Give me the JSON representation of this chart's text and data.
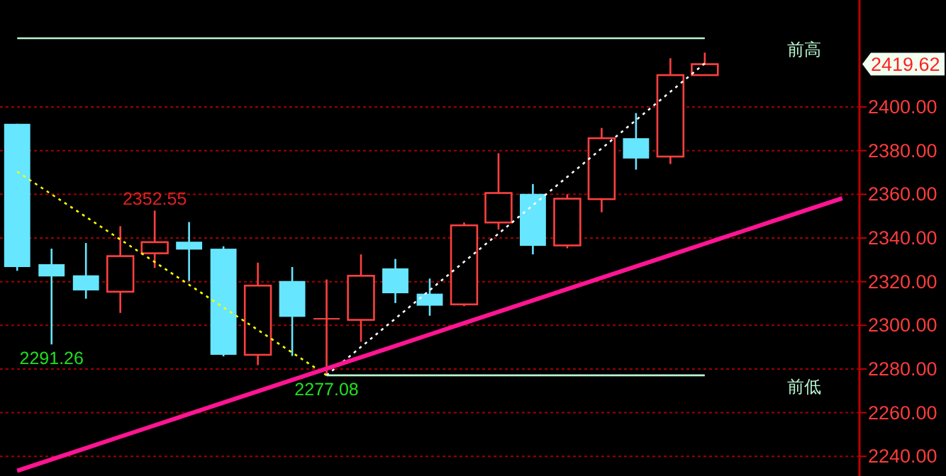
{
  "chart_data": {
    "type": "candlestick",
    "categories": [
      null,
      null,
      null,
      null,
      null,
      null,
      null,
      null,
      null,
      null,
      null,
      null,
      null,
      null,
      null,
      null,
      null,
      null,
      null,
      null,
      null,
      null,
      null,
      null,
      null
    ],
    "ohlc": [
      [
        2392.3,
        2392.3,
        2325.0,
        2326.7
      ],
      [
        2328.0,
        2335.1,
        2291.26,
        2322.4
      ],
      [
        2322.9,
        2337.7,
        2312.2,
        2316.0
      ],
      [
        2315.4,
        2345.4,
        2305.7,
        2331.7
      ],
      [
        2333.0,
        2352.55,
        2326.3,
        2338.1
      ],
      [
        2338.3,
        2347.3,
        2320.3,
        2334.7
      ],
      [
        2335.1,
        2336.2,
        2285.8,
        2286.5
      ],
      [
        2286.5,
        2328.7,
        2281.8,
        2318.2
      ],
      [
        2320.3,
        2326.7,
        2286.0,
        2303.9
      ],
      [
        2303.0,
        2321.0,
        2277.08,
        2303.0
      ],
      [
        2302.5,
        2332.5,
        2292.5,
        2322.7
      ],
      [
        2326.1,
        2330.4,
        2310.2,
        2314.7
      ],
      [
        2314.5,
        2321.4,
        2304.4,
        2309.0
      ],
      [
        2309.6,
        2347.1,
        2308.8,
        2345.8
      ],
      [
        2347.1,
        2378.8,
        2343.9,
        2360.6
      ],
      [
        2360.2,
        2364.7,
        2332.5,
        2336.4
      ],
      [
        2336.6,
        2360.0,
        2335.3,
        2358.0
      ],
      [
        2357.8,
        2390.4,
        2351.8,
        2385.7
      ],
      [
        2385.7,
        2397.2,
        2371.3,
        2376.4
      ],
      [
        2377.3,
        2422.3,
        2373.9,
        2414.6
      ],
      [
        2414.6,
        2424.9,
        2414.6,
        2419.62
      ],
      null,
      null,
      null,
      null
    ],
    "colors": [
      "#66e6ff",
      "#66e6ff",
      "#66e6ff",
      "#ff4040",
      "#ff4040",
      "#66e6ff",
      "#66e6ff",
      "#ff4040",
      "#66e6ff",
      "#ff4040",
      "#ff4040",
      "#66e6ff",
      "#66e6ff",
      "#ff4040",
      "#ff4040",
      "#66e6ff",
      "#ff4040",
      "#ff4040",
      "#66e6ff",
      "#ff4040",
      "#ff4040",
      null,
      null,
      null,
      null
    ],
    "series": [
      {
        "type": "line",
        "values": [
          2370.4,
          2360.0,
          2349.7,
          2339.3,
          2329.0,
          2318.6,
          2308.2,
          2297.9,
          2287.5,
          2277.1,
          null,
          null,
          null,
          null,
          null,
          null,
          null,
          null,
          null,
          null,
          null,
          null,
          null,
          null,
          null
        ],
        "color": "#ffff00",
        "line_style": "dotted"
      },
      {
        "type": "line",
        "values": [
          null,
          null,
          null,
          null,
          null,
          null,
          null,
          null,
          null,
          2277.1,
          2290.1,
          2303.1,
          2316.1,
          2329.1,
          2342.0,
          2355.0,
          2368.0,
          2381.0,
          2394.0,
          2407.0,
          2420.0,
          null,
          null,
          null,
          null
        ],
        "color": "#ffffff",
        "line_style": "dotted"
      },
      {
        "type": "line",
        "values": [
          2233.4,
          2238.6,
          2243.8,
          2249.0,
          2254.2,
          2259.4,
          2264.6,
          2269.8,
          2275.0,
          2280.2,
          2285.4,
          2290.6,
          2295.8,
          2301.0,
          2306.2,
          2311.4,
          2316.6,
          2321.8,
          2327.0,
          2332.2,
          2337.4,
          2342.6,
          2347.8,
          2353.0,
          2358.2
        ],
        "color": "#ff1493",
        "line_style": "solid"
      },
      {
        "type": "line",
        "name": "前高",
        "values": [
          2431.5,
          2431.5,
          2431.5,
          2431.5,
          2431.5,
          2431.5,
          2431.5,
          2431.5,
          2431.5,
          2431.5,
          2431.5,
          2431.5,
          2431.5,
          2431.5,
          2431.5,
          2431.5,
          2431.5,
          2431.5,
          2431.5,
          2431.5,
          2431.5,
          null,
          null,
          null,
          null
        ],
        "color": "#b8f5d0",
        "line_style": "solid"
      },
      {
        "type": "line",
        "name": "前低",
        "values": [
          null,
          null,
          null,
          null,
          null,
          null,
          null,
          null,
          null,
          2277.1,
          2277.1,
          2277.1,
          2277.1,
          2277.1,
          2277.1,
          2277.1,
          2277.1,
          2277.1,
          2277.1,
          2277.1,
          2277.1,
          null,
          null,
          null,
          null
        ],
        "color": "#b8f5d0",
        "line_style": "solid"
      }
    ],
    "annotations": [
      {
        "text": "2352.55",
        "y": 2352.55
      },
      {
        "text": "2291.26",
        "y": 2291.26
      },
      {
        "text": "2277.08",
        "y": 2277.08
      },
      "2419.62"
    ],
    "ylim": [
      2231,
      2449
    ],
    "yticks": [
      {
        "value": 2240,
        "label": "2240.00"
      },
      {
        "value": 2260,
        "label": "2260.00"
      },
      {
        "value": 2280,
        "label": "2280.00"
      },
      {
        "value": 2300,
        "label": "2300.00"
      },
      {
        "value": 2320,
        "label": "2320.00"
      },
      {
        "value": 2340,
        "label": "2340.00"
      },
      {
        "value": 2360,
        "label": "2360.00"
      },
      {
        "value": 2380,
        "label": "2380.00"
      },
      {
        "value": 2400,
        "label": "2400.00"
      }
    ],
    "grid": "y",
    "tick_labels": "y"
  }
}
